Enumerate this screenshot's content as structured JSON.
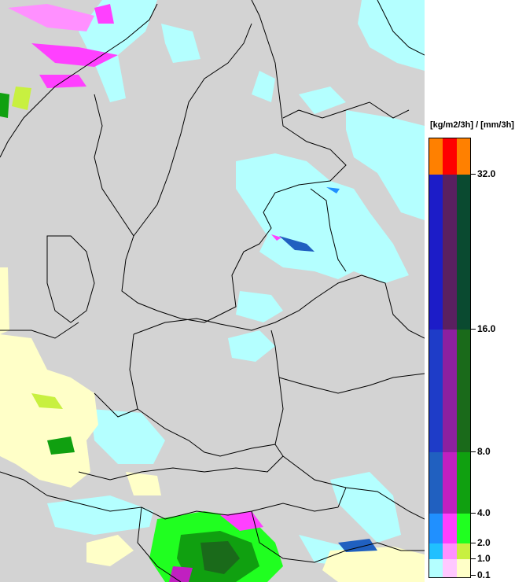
{
  "legend": {
    "title": "[kg/m2/3h] / [mm/3h]",
    "labels": [
      "32.0",
      "16.0",
      "8.0",
      "4.0",
      "2.0",
      "1.0",
      "0.1"
    ],
    "bands": [
      {
        "colors": [
          "#ff8000",
          "#ff0000",
          "#ff8000"
        ]
      },
      {
        "colors": [
          "#1c1cc8",
          "#5a2060",
          "#0a4a30"
        ]
      },
      {
        "colors": [
          "#1e3cc8",
          "#8c20a0",
          "#1a6a1a"
        ]
      },
      {
        "colors": [
          "#2060c0",
          "#c020c0",
          "#10a010"
        ]
      },
      {
        "colors": [
          "#2090ff",
          "#ff40ff",
          "#20ff20"
        ]
      },
      {
        "colors": [
          "#20c0ff",
          "#ff90ff",
          "#c8f040"
        ]
      },
      {
        "colors": [
          "#b4ffff",
          "#ffc8ff",
          "#ffffc8"
        ]
      }
    ]
  },
  "map": {
    "background": "#d3d3d3",
    "precip_light_color": "#b4ffff"
  }
}
